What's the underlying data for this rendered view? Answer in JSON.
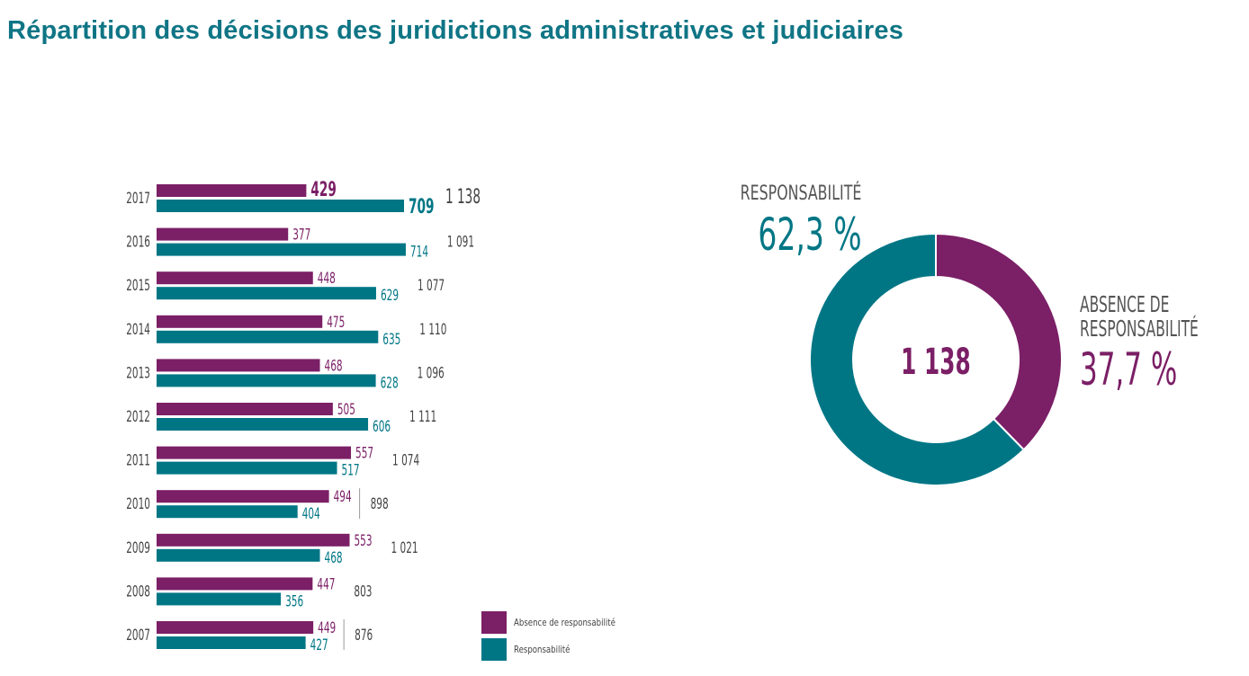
{
  "title": "Répartition des décisions des juridictions administratives et judiciaires",
  "colors": {
    "absence": "#7b1f66",
    "responsabilite": "#007685",
    "total_text": "#444444",
    "title": "#0f7585"
  },
  "chart_data": [
    {
      "type": "bar",
      "orientation": "horizontal",
      "categories": [
        "2017",
        "2016",
        "2015",
        "2014",
        "2013",
        "2012",
        "2011",
        "2010",
        "2009",
        "2008",
        "2007"
      ],
      "series": [
        {
          "name": "Absence de responsabilité",
          "values": [
            429,
            377,
            448,
            475,
            468,
            505,
            557,
            494,
            553,
            447,
            449
          ]
        },
        {
          "name": "Responsabilité",
          "values": [
            709,
            714,
            629,
            635,
            628,
            606,
            517,
            404,
            468,
            356,
            427
          ]
        }
      ],
      "totals": [
        "1 138",
        "1 091",
        "1 077",
        "1 110",
        "1 096",
        "1 111",
        "1 074",
        "898",
        "1 021",
        "803",
        "876"
      ],
      "separator_rows": [
        "2010",
        "2007"
      ],
      "xlabel": "",
      "ylabel": "",
      "xlim": [
        0,
        750
      ],
      "grid": false,
      "legend": {
        "placement": "bottom-right",
        "entries": [
          "Absence de responsabilité",
          "Responsabilité"
        ]
      }
    },
    {
      "type": "pie",
      "donut": true,
      "center_label": "1 138",
      "slices": [
        {
          "name": "RESPONSABILITÉ",
          "value": 62.3,
          "label": "62,3 %"
        },
        {
          "name": "ABSENCE DE RESPONSABILITÉ",
          "value": 37.7,
          "label": "37,7 %"
        }
      ],
      "year": "2017"
    }
  ],
  "donut_labels": {
    "resp_title": "RESPONSABILITÉ",
    "resp_pct": "62,3 %",
    "absence_title_line1": "ABSENCE DE",
    "absence_title_line2": "RESPONSABILITÉ",
    "absence_pct": "37,7 %",
    "center": "1 138"
  }
}
